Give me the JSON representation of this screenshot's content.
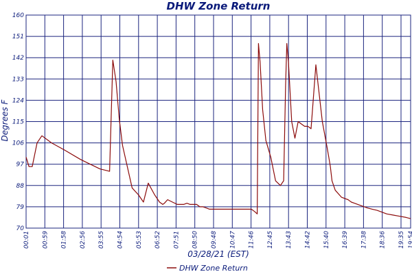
{
  "colors": {
    "grid": "#1a237e",
    "text": "#0a1a7a",
    "series": "#8b0a0a",
    "background": "#ffffff"
  },
  "chart_data": {
    "type": "line",
    "title": "DHW Zone Return",
    "xlabel": "03/28/21 (EST)",
    "ylabel": "Degrees F",
    "ylim": [
      70,
      160
    ],
    "y_ticks": [
      "70",
      "79",
      "88",
      "97",
      "106",
      "115",
      "124",
      "133",
      "142",
      "151",
      "160"
    ],
    "x_ticks": [
      "00:01",
      "00:59",
      "01:58",
      "02:56",
      "03:55",
      "04:54",
      "05:53",
      "06:52",
      "07:51",
      "08:50",
      "09:48",
      "10:47",
      "11:46",
      "12:45",
      "13:43",
      "14:42",
      "15:40",
      "16:39",
      "17:38",
      "18:36",
      "19:35",
      "19:54"
    ],
    "grid": true,
    "legend_position": "bottom-center",
    "series": [
      {
        "name": "DHW Zone Return",
        "x": [
          1,
          10,
          20,
          35,
          50,
          80,
          120,
          170,
          230,
          260,
          270,
          280,
          290,
          300,
          315,
          330,
          350,
          365,
          380,
          400,
          415,
          425,
          430,
          440,
          455,
          470,
          480,
          490,
          500,
          510,
          520,
          530,
          540,
          550,
          560,
          570,
          580,
          590,
          600,
          610,
          620,
          630,
          640,
          650,
          660,
          670,
          680,
          690,
          700,
          710,
          718,
          722,
          727,
          735,
          745,
          760,
          775,
          790,
          800,
          806,
          810,
          815,
          825,
          835,
          845,
          855,
          865,
          875,
          885,
          900,
          920,
          935,
          940,
          945,
          950,
          960,
          980,
          1000,
          1005,
          1010,
          1020,
          1040,
          1060,
          1075,
          1090,
          1100,
          1120,
          1140,
          1160,
          1180,
          1194
        ],
        "y": [
          100,
          96,
          96,
          106,
          109,
          106,
          103,
          99,
          95,
          94,
          141,
          132,
          116,
          105,
          96,
          87,
          84,
          81,
          89,
          84,
          81,
          80,
          80.5,
          82,
          81,
          80,
          80,
          80,
          80.5,
          80,
          80,
          80,
          79,
          79,
          78.5,
          78,
          78,
          78,
          78,
          78,
          78,
          78,
          78,
          78,
          78,
          78,
          78,
          78,
          78,
          77,
          76,
          148,
          140,
          120,
          107,
          100,
          90,
          88,
          90,
          130,
          148,
          140,
          115,
          108,
          115,
          114,
          113,
          113,
          112,
          139,
          115,
          104,
          100,
          96,
          90,
          86,
          83,
          82,
          81.5,
          81,
          80.5,
          79.5,
          78.5,
          78,
          77.5,
          77,
          76,
          75.5,
          75,
          74.5,
          74
        ]
      }
    ]
  }
}
